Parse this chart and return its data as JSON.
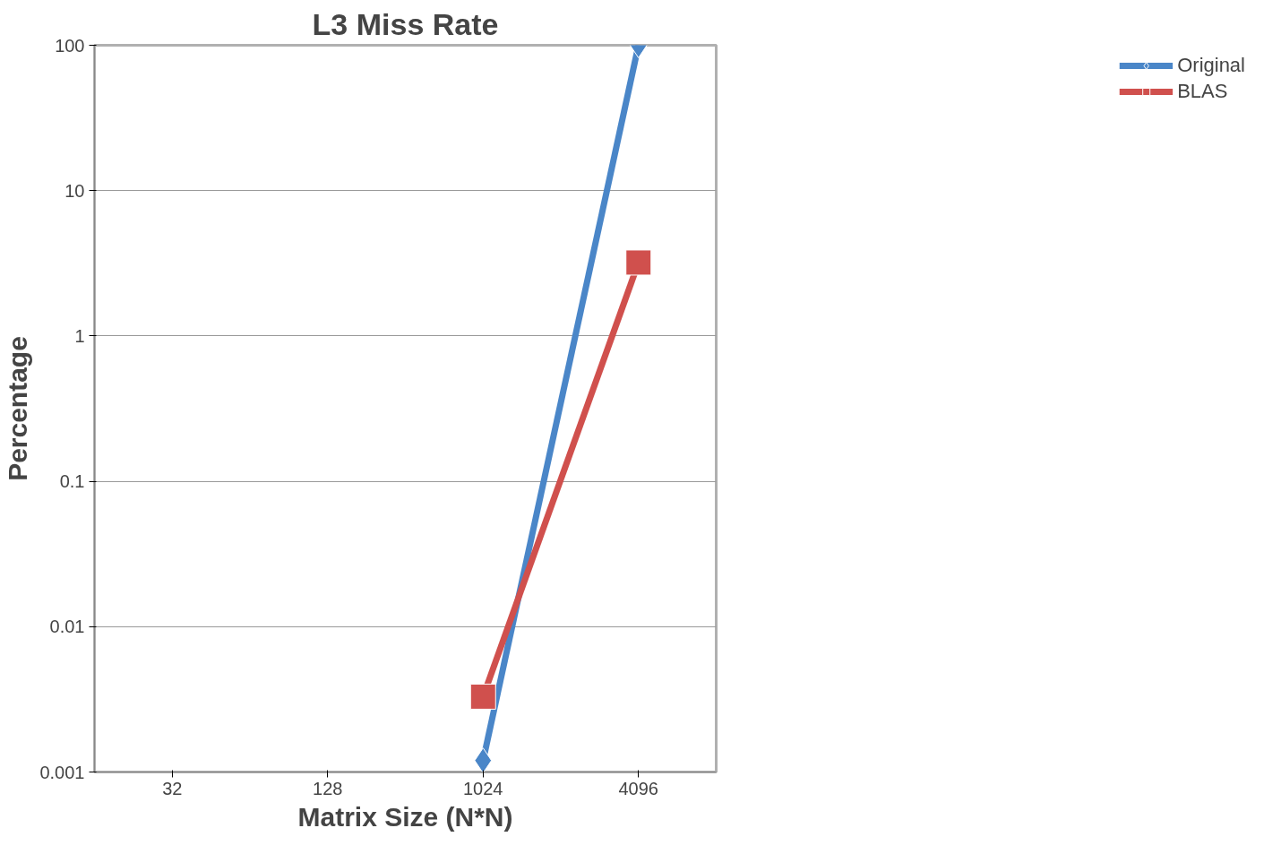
{
  "chart_data": {
    "type": "line",
    "title": "L3 Miss Rate",
    "xlabel": "Matrix Size (N*N)",
    "ylabel": "Percentage",
    "categories": [
      "32",
      "128",
      "1024",
      "4096"
    ],
    "series": [
      {
        "name": "Original",
        "color": "#4a86c8",
        "values": [
          null,
          null,
          0.0012,
          100
        ],
        "marker": "diamond"
      },
      {
        "name": "BLAS",
        "color": "#d0504d",
        "values": [
          null,
          null,
          0.0033,
          3.2
        ],
        "marker": "square"
      }
    ],
    "log": "y",
    "ylim": [
      0.001,
      100
    ],
    "yticks": [
      0.001,
      0.01,
      0.1,
      1,
      10,
      100
    ],
    "grid": "y",
    "legend": "right"
  }
}
